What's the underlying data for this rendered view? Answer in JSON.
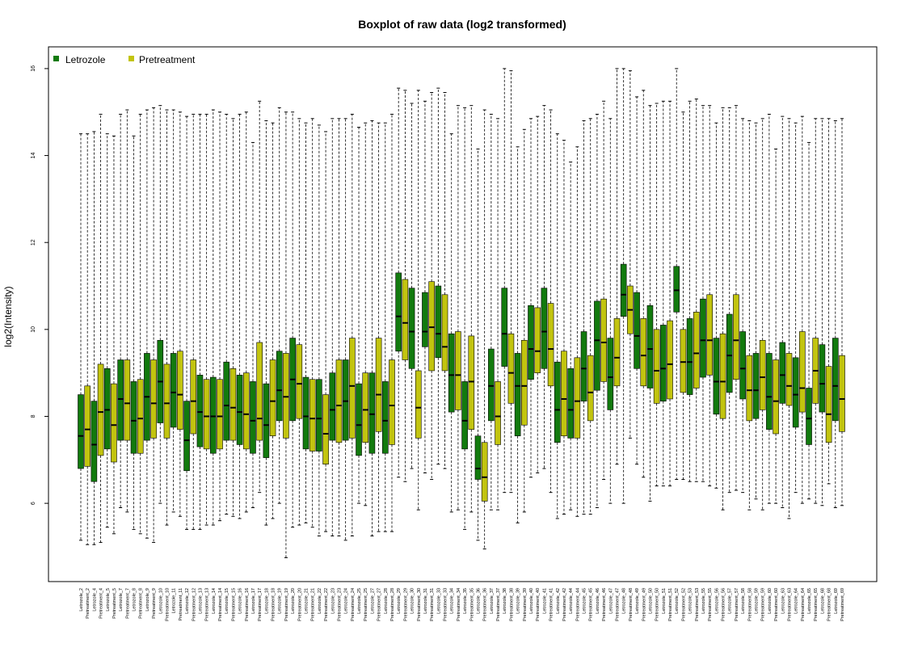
{
  "chart_data": {
    "type": "box",
    "title": "Boxplot of raw data (log2 transformed)",
    "xlabel": "",
    "ylabel": "log2(Intensity)",
    "ylim": [
      4.2,
      16.5
    ],
    "yticks": [
      6,
      8,
      10,
      12,
      14,
      16
    ],
    "grid": false,
    "legend_position": "top-left",
    "legend": [
      {
        "label": "Letrozole",
        "color": "#127a0e"
      },
      {
        "label": "Pretreatment",
        "color": "#c2c40f"
      }
    ],
    "categories": [
      "Letrozole_2",
      "Pretreatment_2",
      "Letrozole_4",
      "Pretreatment_4",
      "Letrozole_5",
      "Pretreatment_5",
      "Letrozole_7",
      "Pretreatment_7",
      "Letrozole_8",
      "Pretreatment_8",
      "Letrozole_9",
      "Pretreatment_9",
      "Letrozole_10",
      "Pretreatment_10",
      "Letrozole_11",
      "Pretreatment_11",
      "Letrozole_12",
      "Pretreatment_12",
      "Letrozole_13",
      "Pretreatment_13",
      "Letrozole_14",
      "Pretreatment_14",
      "Letrozole_15",
      "Pretreatment_15",
      "Letrozole_16",
      "Pretreatment_16",
      "Letrozole_17",
      "Pretreatment_17",
      "Letrozole_18",
      "Pretreatment_18",
      "Letrozole_19",
      "Pretreatment_19",
      "Letrozole_20",
      "Pretreatment_20",
      "Letrozole_21",
      "Pretreatment_21",
      "Letrozole_22",
      "Pretreatment_22",
      "Letrozole_23",
      "Pretreatment_23",
      "Letrozole_24",
      "Pretreatment_24",
      "Letrozole_25",
      "Pretreatment_25",
      "Letrozole_27",
      "Pretreatment_27",
      "Letrozole_28",
      "Pretreatment_28",
      "Letrozole_29",
      "Pretreatment_29",
      "Letrozole_30",
      "Pretreatment_30",
      "Letrozole_31",
      "Pretreatment_31",
      "Letrozole_33",
      "Pretreatment_33",
      "Letrozole_34",
      "Pretreatment_34",
      "Letrozole_35",
      "Pretreatment_35",
      "Letrozole_36",
      "Pretreatment_36",
      "Letrozole_37",
      "Pretreatment_37",
      "Letrozole_38",
      "Pretreatment_38",
      "Letrozole_39",
      "Pretreatment_39",
      "Letrozole_40",
      "Pretreatment_40",
      "Letrozole_41",
      "Pretreatment_41",
      "Letrozole_42",
      "Pretreatment_42",
      "Letrozole_44",
      "Pretreatment_44",
      "Letrozole_45",
      "Pretreatment_45",
      "Letrozole_46",
      "Pretreatment_46",
      "Letrozole_47",
      "Pretreatment_47",
      "Letrozole_48",
      "Pretreatment_48",
      "Letrozole_49",
      "Pretreatment_49",
      "Letrozole_50",
      "Pretreatment_50",
      "Letrozole_51",
      "Pretreatment_51",
      "Letrozole_52",
      "Pretreatment_52",
      "Letrozole_53",
      "Pretreatment_53",
      "Letrozole_55",
      "Pretreatment_55",
      "Letrozole_56",
      "Pretreatment_56",
      "Letrozole_57",
      "Pretreatment_57",
      "Letrozole_58",
      "Pretreatment_58",
      "Letrozole_59",
      "Pretreatment_59",
      "Letrozole_60",
      "Pretreatment_60",
      "Letrozole_63",
      "Pretreatment_63",
      "Letrozole_64",
      "Pretreatment_64",
      "Letrozole_65",
      "Pretreatment_65",
      "Letrozole_68",
      "Pretreatment_68",
      "Letrozole_69",
      "Pretreatment_69"
    ],
    "min": [
      5.15,
      5.05,
      5.05,
      5.1,
      5.45,
      5.3,
      5.9,
      5.8,
      5.4,
      5.3,
      5.2,
      5.1,
      6.0,
      5.5,
      5.8,
      5.7,
      5.4,
      5.4,
      5.4,
      5.5,
      5.5,
      5.6,
      5.75,
      5.7,
      5.65,
      5.8,
      5.9,
      6.25,
      5.5,
      5.65,
      6.0,
      4.75,
      5.45,
      5.5,
      5.55,
      5.45,
      5.25,
      5.35,
      5.25,
      5.25,
      5.15,
      5.25,
      6.0,
      5.95,
      5.25,
      5.35,
      5.35,
      5.35,
      6.6,
      6.5,
      6.8,
      5.85,
      6.7,
      6.55,
      6.9,
      6.8,
      5.8,
      5.85,
      5.4,
      5.8,
      5.15,
      4.95,
      5.85,
      5.85,
      6.25,
      6.25,
      5.55,
      5.8,
      6.6,
      6.7,
      6.8,
      6.25,
      5.65,
      5.75,
      5.85,
      5.7,
      5.75,
      5.75,
      5.9,
      6.55,
      6.0,
      6.9,
      6.0,
      7.5,
      6.9,
      6.6,
      6.05,
      6.4,
      6.4,
      6.4,
      6.55,
      6.55,
      6.5,
      6.5,
      6.5,
      6.4,
      6.35,
      5.85,
      6.25,
      6.3,
      6.25,
      5.85,
      6.1,
      5.85,
      6.0,
      6.0,
      5.9,
      5.65,
      6.25,
      6.0,
      6.1,
      6.0,
      5.95,
      6.45,
      5.9,
      5.95,
      5.85,
      5.85
    ],
    "q1": [
      6.8,
      6.85,
      6.5,
      7.1,
      7.25,
      6.95,
      7.45,
      7.45,
      7.15,
      7.15,
      7.45,
      7.5,
      7.85,
      7.5,
      7.75,
      7.7,
      6.75,
      7.6,
      7.3,
      7.25,
      7.15,
      7.25,
      7.45,
      7.45,
      7.35,
      7.25,
      7.15,
      7.45,
      7.05,
      7.55,
      7.9,
      7.5,
      7.9,
      7.95,
      7.25,
      7.2,
      7.2,
      6.9,
      7.45,
      7.4,
      7.45,
      7.5,
      7.1,
      7.4,
      7.15,
      7.65,
      7.15,
      7.35,
      9.5,
      9.3,
      9.1,
      7.5,
      9.6,
      9.05,
      9.35,
      9.05,
      8.1,
      8.15,
      7.25,
      7.7,
      6.55,
      6.05,
      7.9,
      7.35,
      9.15,
      8.3,
      7.55,
      7.8,
      8.85,
      9.0,
      9.1,
      8.7,
      7.4,
      7.55,
      7.5,
      7.5,
      8.35,
      7.9,
      8.6,
      8.8,
      8.15,
      8.7,
      10.3,
      9.9,
      9.1,
      8.7,
      8.65,
      8.3,
      8.35,
      8.4,
      10.4,
      8.55,
      8.5,
      8.65,
      8.9,
      8.95,
      8.05,
      7.95,
      8.55,
      8.85,
      8.4,
      7.9,
      7.95,
      8.15,
      7.7,
      7.6,
      8.3,
      8.25,
      7.75,
      8.1,
      7.35,
      8.3,
      8.1,
      7.4,
      7.9,
      7.65
    ],
    "median": [
      7.55,
      7.7,
      7.35,
      8.1,
      8.15,
      7.8,
      8.4,
      8.3,
      7.9,
      7.95,
      8.45,
      8.3,
      8.8,
      8.3,
      8.55,
      8.5,
      7.45,
      8.35,
      8.1,
      8.0,
      8.0,
      8.0,
      8.25,
      8.2,
      8.1,
      8.05,
      7.9,
      7.95,
      7.8,
      8.35,
      8.6,
      8.45,
      8.85,
      8.75,
      8.0,
      7.95,
      7.95,
      7.6,
      8.15,
      8.25,
      8.35,
      8.7,
      7.8,
      8.15,
      8.05,
      8.5,
      7.9,
      8.25,
      10.3,
      10.15,
      9.95,
      8.2,
      9.95,
      10.05,
      9.9,
      9.6,
      8.95,
      8.95,
      7.9,
      8.8,
      6.8,
      6.6,
      8.7,
      8.0,
      9.9,
      9.0,
      8.7,
      8.7,
      9.55,
      9.5,
      9.95,
      9.55,
      8.15,
      8.4,
      8.15,
      8.35,
      9.1,
      8.55,
      9.75,
      9.7,
      8.9,
      9.35,
      10.8,
      10.45,
      9.85,
      9.4,
      9.55,
      9.05,
      9.1,
      9.2,
      10.9,
      9.25,
      9.25,
      9.45,
      9.75,
      9.75,
      8.8,
      8.8,
      9.4,
      9.75,
      9.1,
      8.6,
      8.6,
      8.9,
      8.45,
      8.35,
      8.95,
      8.7,
      8.5,
      8.65,
      7.95,
      9.05,
      8.75,
      8.05,
      8.7,
      8.4
    ],
    "q3": [
      8.5,
      8.7,
      8.35,
      9.2,
      9.1,
      8.75,
      9.3,
      9.3,
      8.8,
      8.85,
      9.45,
      9.3,
      9.75,
      9.2,
      9.45,
      9.5,
      8.35,
      9.3,
      8.95,
      8.85,
      8.9,
      8.85,
      9.25,
      9.1,
      8.95,
      9.0,
      8.8,
      9.7,
      8.75,
      9.3,
      9.5,
      9.45,
      9.8,
      9.65,
      8.9,
      8.85,
      8.85,
      8.5,
      9.0,
      9.3,
      9.3,
      9.8,
      8.75,
      9.0,
      9.0,
      9.8,
      8.8,
      9.3,
      11.3,
      11.15,
      10.95,
      9.05,
      10.85,
      11.1,
      11.0,
      10.8,
      9.9,
      9.95,
      8.8,
      9.85,
      7.55,
      7.4,
      9.55,
      8.8,
      10.95,
      9.9,
      9.45,
      9.75,
      10.55,
      10.5,
      10.95,
      10.6,
      9.25,
      9.5,
      9.1,
      9.35,
      9.95,
      9.4,
      10.65,
      10.7,
      9.8,
      10.25,
      11.5,
      11.0,
      10.85,
      10.25,
      10.55,
      10.0,
      10.1,
      10.2,
      11.45,
      10.0,
      10.25,
      10.4,
      10.7,
      10.8,
      9.8,
      9.9,
      10.35,
      10.8,
      9.95,
      9.4,
      9.45,
      9.75,
      9.45,
      9.3,
      9.7,
      9.45,
      9.35,
      9.95,
      8.65,
      9.8,
      9.65,
      9.15,
      9.8,
      9.4
    ],
    "max": [
      14.5,
      14.5,
      14.55,
      14.95,
      14.5,
      14.45,
      14.95,
      15.05,
      14.45,
      14.95,
      15.05,
      15.1,
      15.15,
      15.05,
      15.05,
      15.0,
      14.9,
      14.95,
      14.95,
      14.95,
      15.05,
      15.0,
      14.95,
      14.85,
      14.95,
      15.0,
      14.3,
      15.25,
      14.8,
      14.75,
      15.1,
      15.0,
      15.0,
      14.85,
      14.75,
      14.85,
      14.7,
      14.55,
      14.85,
      14.85,
      14.85,
      14.95,
      14.65,
      14.75,
      14.8,
      14.75,
      14.75,
      14.95,
      15.55,
      15.5,
      15.2,
      15.5,
      15.25,
      15.45,
      15.55,
      15.45,
      14.5,
      15.15,
      15.1,
      15.15,
      14.15,
      15.05,
      14.95,
      14.85,
      16.0,
      15.95,
      14.2,
      14.6,
      14.85,
      14.9,
      15.15,
      15.05,
      14.5,
      14.35,
      13.85,
      14.2,
      14.8,
      14.85,
      14.95,
      15.25,
      14.85,
      16.0,
      16.0,
      15.95,
      15.35,
      15.5,
      15.15,
      15.2,
      15.25,
      15.25,
      16.0,
      15.0,
      15.25,
      15.3,
      15.15,
      15.15,
      14.75,
      15.1,
      15.1,
      15.15,
      14.85,
      14.8,
      14.75,
      14.85,
      14.95,
      14.15,
      14.9,
      14.85,
      14.75,
      14.9,
      14.3,
      14.85,
      14.85,
      14.85,
      14.8,
      14.85
    ]
  }
}
